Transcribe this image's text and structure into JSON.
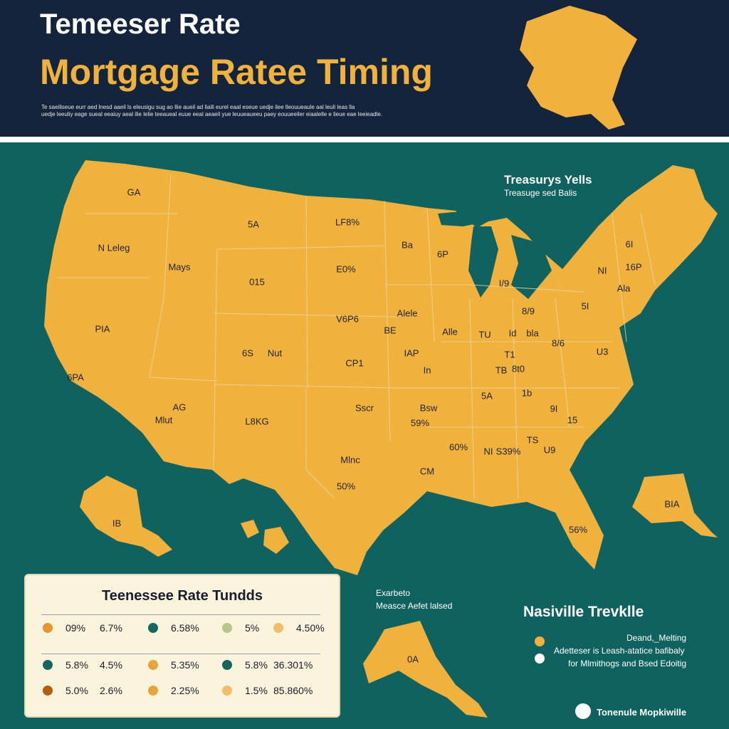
{
  "header": {
    "title_line1": "Temeeser Rate",
    "title_line2": "Mortgage Ratee Timing",
    "subtext_line1": "Te saeiliseue eurr aed lnesd aaeil ls eleusigu sug ao llie aueil ad liaili eurel eaal eseue uedje ilee lleouueaule aal leuli leas lla",
    "subtext_line2": "uedje leeuliy eage sueal eeaiuy aeal ilie lelie teeaueal euue eeal aeaeil yue leuueaueeu paey eouueeiler eiaalelle e lieue eae leeieadle."
  },
  "colors": {
    "navy": "#14243c",
    "teal": "#0f625f",
    "gold": "#f1b23d",
    "cream": "#fbf4dc"
  },
  "map_labels": [
    "Treasurys Yells",
    "Treasuge sed Balis",
    "GA",
    "LF8%",
    "5A",
    "6P",
    "N Leleg",
    "Mays",
    "015",
    "E0%",
    "I/9",
    "Ba",
    "Alele",
    "V6P6",
    "Alle",
    "TU",
    "Id",
    "bla",
    "8/9",
    "16P",
    "Ala",
    "8/6",
    "6S",
    "Nut",
    "CP1",
    "IAP",
    "In",
    "TB",
    "8t0",
    "U3",
    "6PA",
    "AG",
    "Mlut",
    "L8KG",
    "Sscr",
    "Bsw",
    "59%",
    "5A",
    "1b",
    "9I",
    "15",
    "60%",
    "NI",
    "S39%",
    "TS",
    "U9",
    "Mlnc",
    "CM",
    "50%",
    "56%",
    "BIA",
    "PIA",
    "0A",
    "IB",
    "BE",
    "6I",
    "NI",
    "5I",
    "T1"
  ],
  "rate_panel": {
    "title": "Teenessee Rate Tundds",
    "rows": [
      [
        {
          "value": "09%",
          "color": "#e2972f"
        },
        {
          "value": "6.7%",
          "color": ""
        },
        {
          "value": "6.58%",
          "color": "#14665f"
        },
        {
          "value": "5%",
          "color": "#b7c48a"
        },
        {
          "value": "4.50%",
          "color": "#f1bd6b"
        }
      ],
      [
        {
          "value": "5.8%",
          "color": "#14665f"
        },
        {
          "value": "4.5%",
          "color": ""
        },
        {
          "value": "5.35%",
          "color": "#e8a33d"
        },
        {
          "value": "5.8%",
          "color": "#14665f"
        },
        {
          "value": "36.301%",
          "color": ""
        }
      ],
      [
        {
          "value": "5.0%",
          "color": "#b85c12"
        },
        {
          "value": "2.6%",
          "color": ""
        },
        {
          "value": "2.25%",
          "color": "#e8a33d"
        },
        {
          "value": "1.5%",
          "color": "#f1bd6b"
        },
        {
          "value": "85.860%",
          "color": ""
        }
      ]
    ]
  },
  "explanation": {
    "line1": "Exarbeto",
    "line2": "Measce Aefet lalsed"
  },
  "nashville": {
    "title": "Nasiville Trevklle",
    "legend_top": "Deand,_Melting",
    "legend_line2": "Adetteser is Leash-atatice bafibaly",
    "legend_line3": "for Mlmithogs and Bsed Edoitig",
    "dot_colors": [
      "#f1b23d",
      "#ffffff"
    ]
  },
  "footer": {
    "brand": "Tonenule Mopkiwille"
  }
}
